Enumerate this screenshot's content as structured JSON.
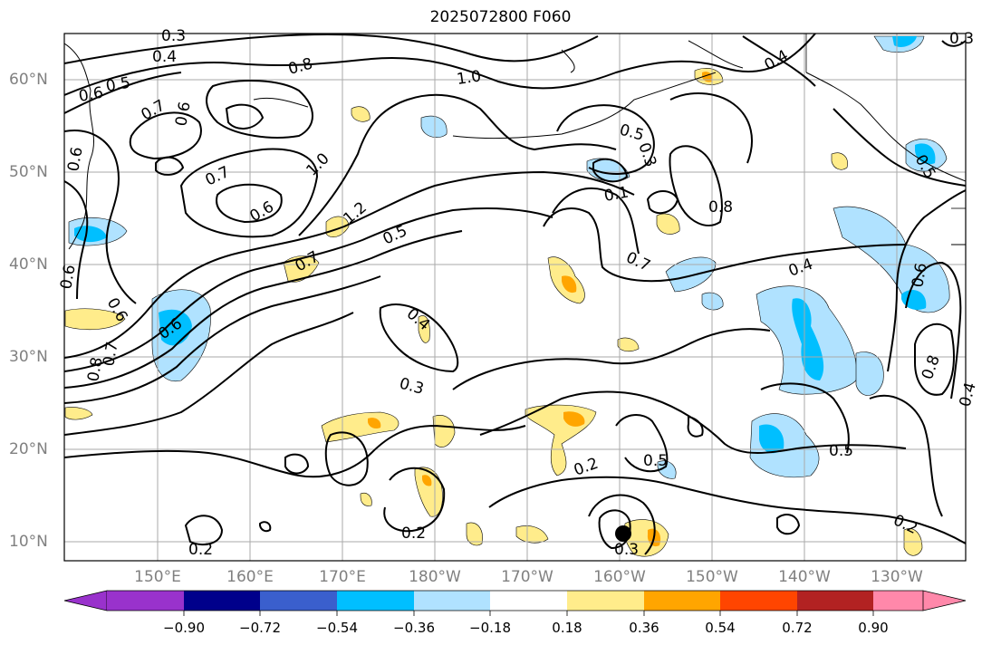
{
  "title": "2025072800 F060",
  "lat_labels": [
    "60°N",
    "50°N",
    "40°N",
    "30°N",
    "20°N",
    "10°N"
  ],
  "lon_labels": [
    "150°E",
    "160°E",
    "170°E",
    "180°W",
    "170°W",
    "160°W",
    "150°W",
    "140°W",
    "130°W"
  ],
  "contour_labels": [
    "0.3",
    "0.4",
    "0.5",
    "0.6",
    "0.8",
    "1.0",
    "0.7",
    "0.3",
    "0.5",
    "0.8",
    "0.6",
    "0.7",
    "0.6",
    "1.0",
    "1.2",
    "0.7",
    "0.5",
    "0.7",
    "0.6",
    "0.4",
    "0.6",
    "0.7",
    "0.6",
    "0.8",
    "0.4",
    "0.6",
    "0.5",
    "0.3",
    "0.4",
    "0.5",
    "0.2",
    "0.3",
    "0.2",
    "0.2",
    "0.2",
    "0.3",
    "0.8",
    "0.1",
    "0.4",
    "0.5",
    "0.6"
  ],
  "colorbar": {
    "ticks": [
      "−0.90",
      "−0.72",
      "−0.54",
      "−0.36",
      "−0.18",
      "0.18",
      "0.36",
      "0.54",
      "0.72",
      "0.90"
    ],
    "colors": [
      "#9932cc",
      "#00008b",
      "#3a5fcd",
      "#00bfff",
      "#b0e2ff",
      "#ffffff",
      "#ffec8b",
      "#ffa500",
      "#ff4500",
      "#b22222",
      "#ff88aa"
    ]
  },
  "fill_colors": {
    "light_blue": "#b0e2ff",
    "blue": "#00bfff",
    "yellow": "#ffec8b",
    "orange": "#ffa500"
  }
}
